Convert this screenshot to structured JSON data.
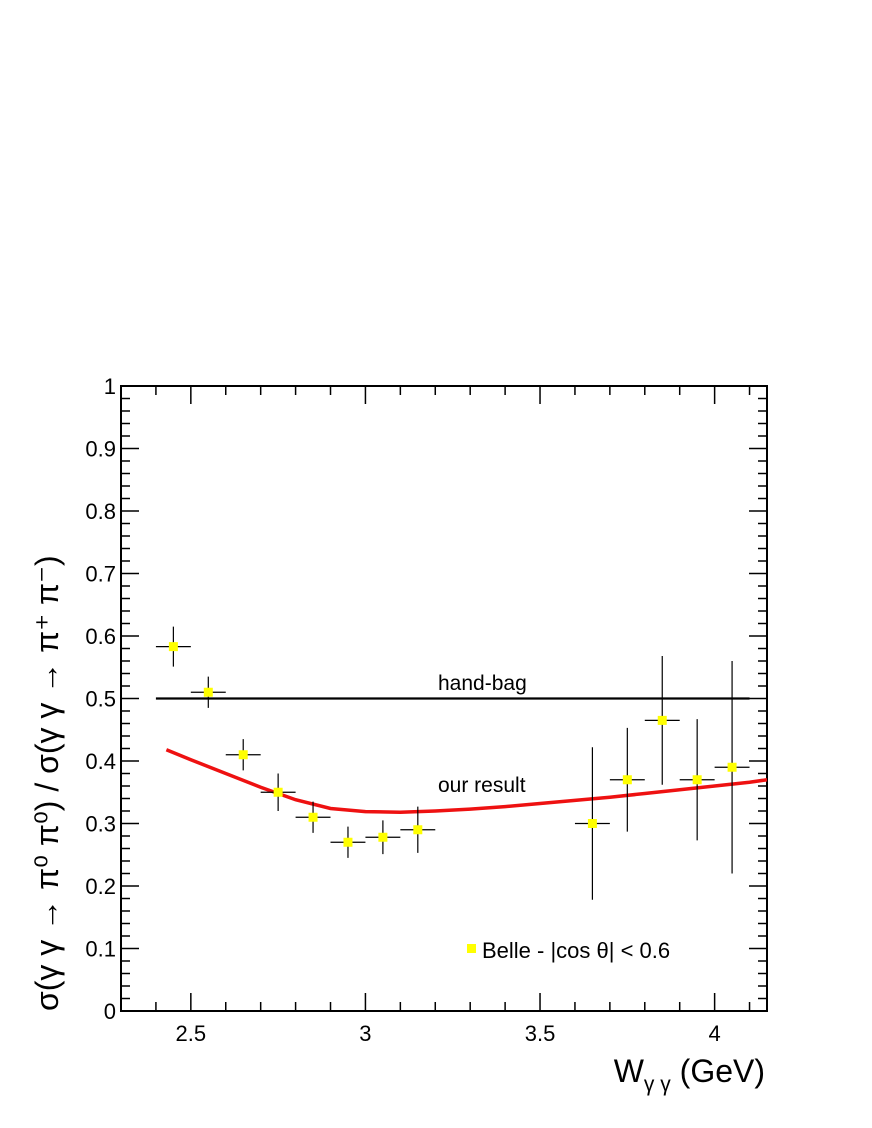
{
  "chart_data": {
    "type": "scatter",
    "xlim": [
      2.3,
      4.15
    ],
    "ylim": [
      0,
      1
    ],
    "x_ticks": [
      "2.5",
      "3",
      "3.5",
      "4"
    ],
    "y_ticks": [
      "0",
      "0.1",
      "0.2",
      "0.3",
      "0.4",
      "0.5",
      "0.6",
      "0.7",
      "0.8",
      "0.9",
      "1"
    ],
    "xlabel": {
      "main": "W",
      "sub": "γ γ",
      "unit": " (GeV)"
    },
    "ylabel": "σ(γ γ → π⁰ π⁰) / σ(γ γ → π⁺ π⁻)",
    "grid": false,
    "legend": {
      "position": "bottom-right"
    },
    "points": {
      "name": "Belle - |cos θ| < 0.6",
      "color": "#ffff00",
      "x": [
        2.45,
        2.55,
        2.65,
        2.75,
        2.85,
        2.95,
        3.05,
        3.15,
        3.65,
        3.75,
        3.85,
        3.95,
        4.05
      ],
      "y": [
        0.583,
        0.51,
        0.41,
        0.35,
        0.31,
        0.27,
        0.278,
        0.29,
        0.3,
        0.37,
        0.465,
        0.37,
        0.39
      ],
      "yerr": [
        0.032,
        0.025,
        0.025,
        0.03,
        0.025,
        0.025,
        0.027,
        0.037,
        0.122,
        0.083,
        0.103,
        0.097,
        0.17
      ],
      "xerr": [
        0.05,
        0.05,
        0.05,
        0.05,
        0.05,
        0.05,
        0.05,
        0.05,
        0.05,
        0.05,
        0.05,
        0.05,
        0.05
      ]
    },
    "lines": [
      {
        "name": "hand-bag",
        "color": "#000000",
        "x": [
          2.4,
          4.1
        ],
        "y": [
          0.5,
          0.5
        ]
      },
      {
        "name": "our result",
        "color": "#ee1111",
        "x": [
          2.43,
          2.5,
          2.6,
          2.7,
          2.8,
          2.9,
          3.0,
          3.1,
          3.2,
          3.3,
          3.4,
          3.5,
          3.6,
          3.7,
          3.8,
          3.9,
          4.0,
          4.1,
          4.15
        ],
        "y": [
          0.418,
          0.402,
          0.38,
          0.358,
          0.338,
          0.324,
          0.319,
          0.318,
          0.32,
          0.323,
          0.327,
          0.332,
          0.337,
          0.342,
          0.348,
          0.354,
          0.36,
          0.366,
          0.37
        ]
      }
    ],
    "annotations": [
      "hand-bag",
      "our result"
    ]
  }
}
